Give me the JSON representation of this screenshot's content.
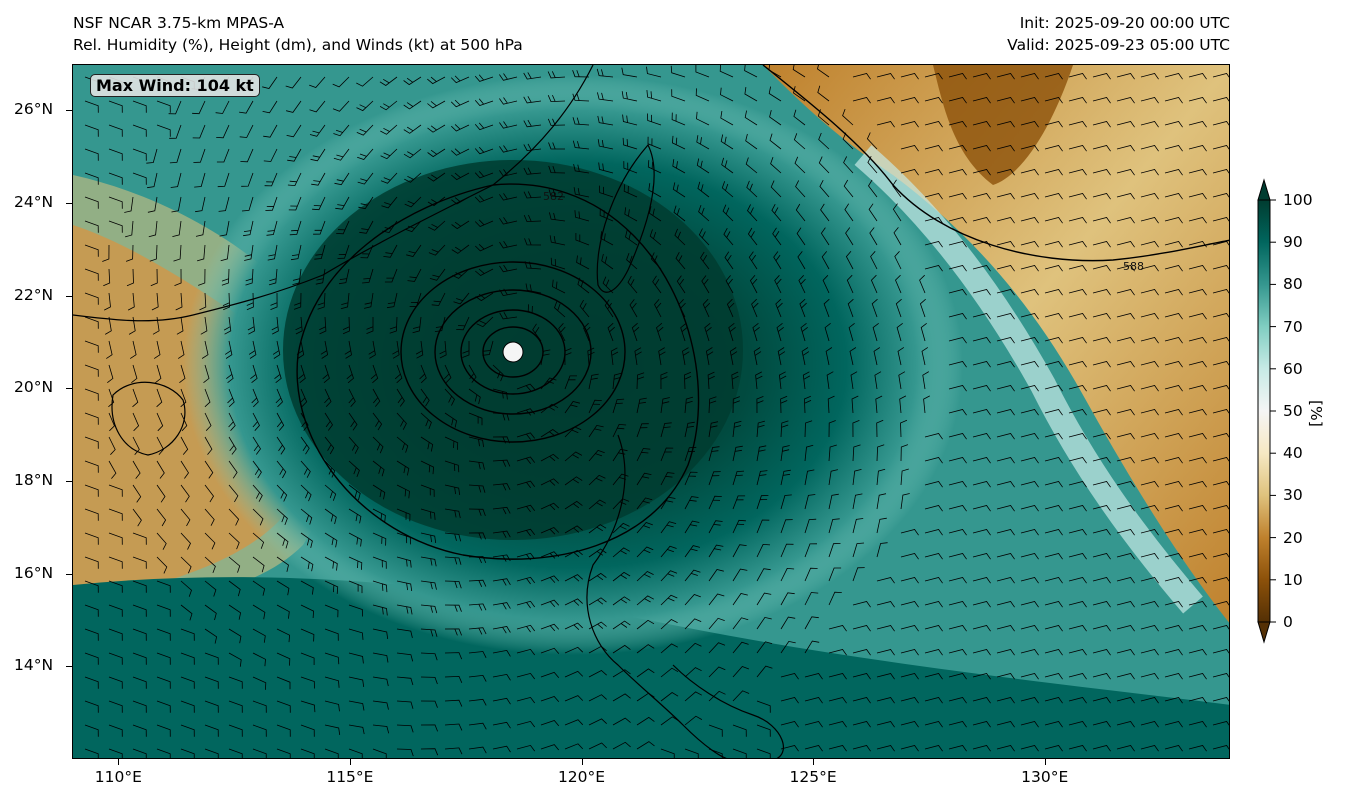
{
  "header": {
    "title_left_1": "NSF NCAR 3.75-km MPAS-A",
    "title_left_2": "Rel. Humidity (%), Height (dm), and Winds (kt) at 500 hPa",
    "title_right_1": "Init: 2025-09-20 00:00 UTC",
    "title_right_2": "Valid: 2025-09-23 05:00 UTC"
  },
  "annotation": {
    "max_wind": "Max Wind: 104 kt"
  },
  "map": {
    "extent": {
      "lon_min": 109.0,
      "lon_max": 134.0,
      "lat_min": 12.0,
      "lat_max": 27.0
    },
    "lat_ticks": [
      {
        "value": 14,
        "label": "14°N"
      },
      {
        "value": 16,
        "label": "16°N"
      },
      {
        "value": 18,
        "label": "18°N"
      },
      {
        "value": 20,
        "label": "20°N"
      },
      {
        "value": 22,
        "label": "22°N"
      },
      {
        "value": 24,
        "label": "24°N"
      },
      {
        "value": 26,
        "label": "26°N"
      }
    ],
    "lon_ticks": [
      {
        "value": 110,
        "label": "110°E"
      },
      {
        "value": 115,
        "label": "115°E"
      },
      {
        "value": 120,
        "label": "120°E"
      },
      {
        "value": 125,
        "label": "125°E"
      },
      {
        "value": 130,
        "label": "130°E"
      }
    ],
    "storm_center": {
      "lon": 118.5,
      "lat": 20.8
    },
    "contour_labels": [
      "582",
      "588"
    ]
  },
  "colorbar": {
    "label": "[%]",
    "ticks": [
      "0",
      "10",
      "20",
      "30",
      "40",
      "50",
      "60",
      "70",
      "80",
      "90",
      "100"
    ],
    "colors": [
      "#543005",
      "#8c510a",
      "#bf812d",
      "#dfc27d",
      "#f6e8c3",
      "#f5f5f5",
      "#c7eae5",
      "#80cdc1",
      "#35978f",
      "#01665e",
      "#003c30"
    ]
  }
}
